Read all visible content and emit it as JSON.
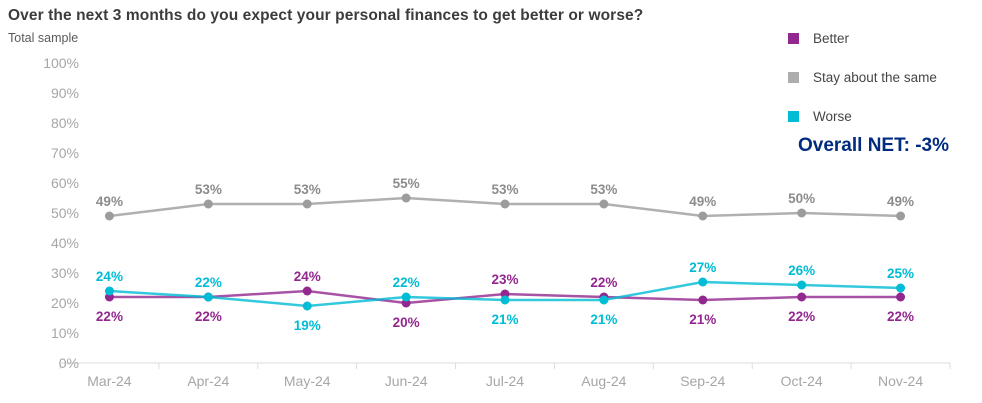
{
  "header": {
    "title": "Over the next 3 months do you expect your personal finances to get better or worse?",
    "subtitle": "Total sample"
  },
  "legend": {
    "overall_net": "Overall NET: -3%",
    "overall_net_color": "#002b7f"
  },
  "chart_data": {
    "type": "line",
    "title": "Over the next 3 months do you expect your personal finances to get better or worse?",
    "subtitle": "Total sample",
    "categories": [
      "Mar-24",
      "Apr-24",
      "May-24",
      "Jun-24",
      "Jul-24",
      "Aug-24",
      "Sep-24",
      "Oct-24",
      "Nov-24"
    ],
    "series": [
      {
        "name": "Better",
        "color": "#92278F",
        "legend_color": "#92278F",
        "values": [
          22,
          22,
          24,
          20,
          23,
          22,
          21,
          22,
          22
        ],
        "label_side": [
          "below",
          "below",
          "above",
          "below",
          "above",
          "above",
          "below",
          "below",
          "below"
        ]
      },
      {
        "name": "Stay about the same",
        "color": "#9c9c9c",
        "legend_color": "#adadad",
        "label_color": "#8c8c8c",
        "values": [
          49,
          53,
          53,
          55,
          53,
          53,
          49,
          50,
          49
        ],
        "label_side": [
          "above",
          "above",
          "above",
          "above",
          "above",
          "above",
          "above",
          "above",
          "above"
        ]
      },
      {
        "name": "Worse",
        "color": "#00BCD4",
        "legend_color": "#00BCD4",
        "values": [
          24,
          22,
          19,
          22,
          21,
          21,
          27,
          26,
          25
        ],
        "label_side": [
          "above",
          "above",
          "below",
          "above",
          "below",
          "below",
          "above",
          "above",
          "above"
        ]
      }
    ],
    "y_axis": {
      "min": 0,
      "max": 100,
      "ticks": [
        "0%",
        "10%",
        "20%",
        "30%",
        "40%",
        "50%",
        "60%",
        "70%",
        "80%",
        "90%",
        "100%"
      ]
    },
    "xlabel": "",
    "ylabel": "",
    "grid": false,
    "legend_position": "right",
    "annotation": "Overall NET: -3%"
  }
}
